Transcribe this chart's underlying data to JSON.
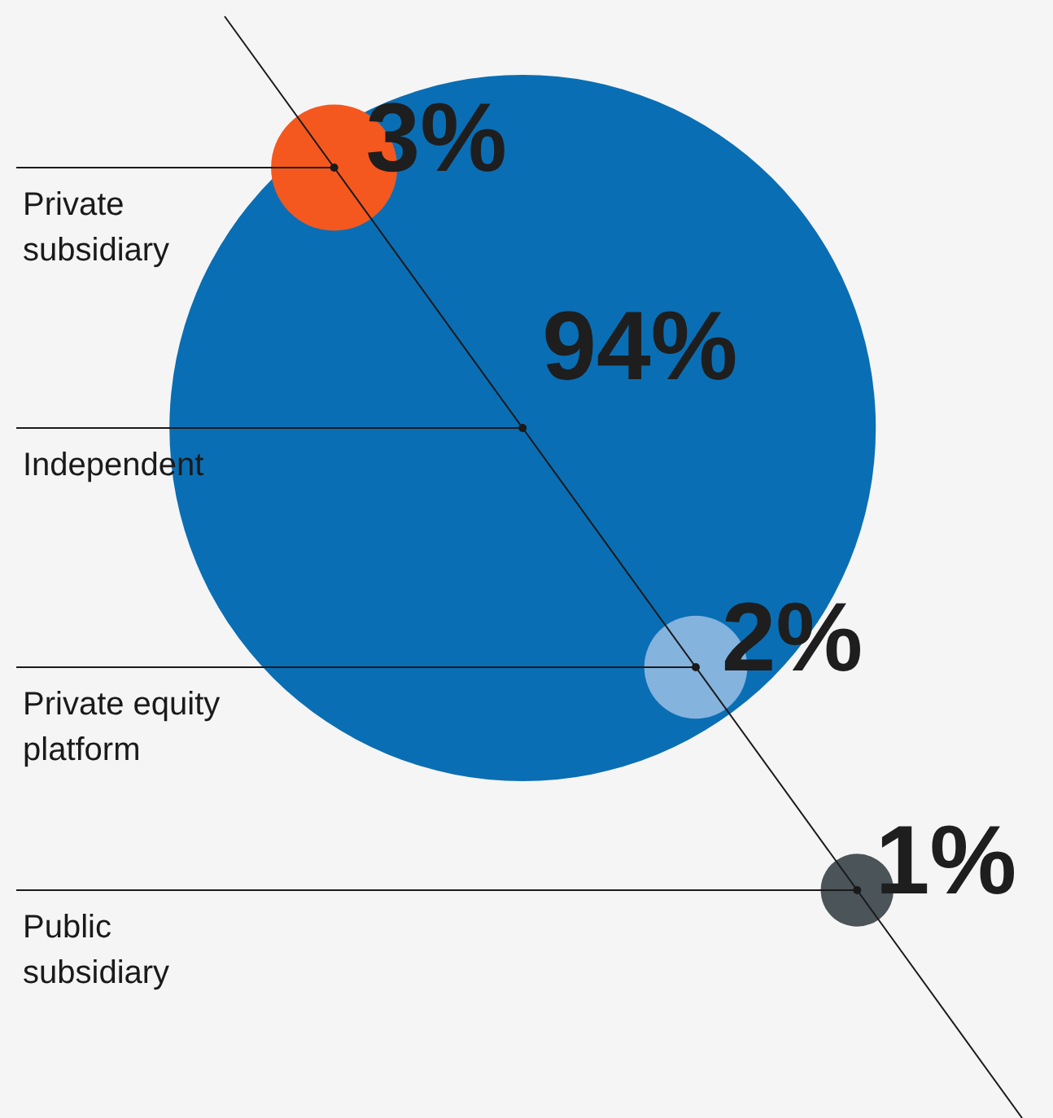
{
  "chart_data": {
    "type": "other",
    "categories": [
      "Independent",
      "Private subsidiary",
      "Private equity platform",
      "Public subsidiary"
    ],
    "values": [
      94,
      3,
      2,
      1
    ],
    "value_labels": [
      "94%",
      "3%",
      "2%",
      "1%"
    ],
    "colors": [
      "#0a6eb4",
      "#f4581e",
      "#84b3de",
      "#4b5458"
    ]
  }
}
